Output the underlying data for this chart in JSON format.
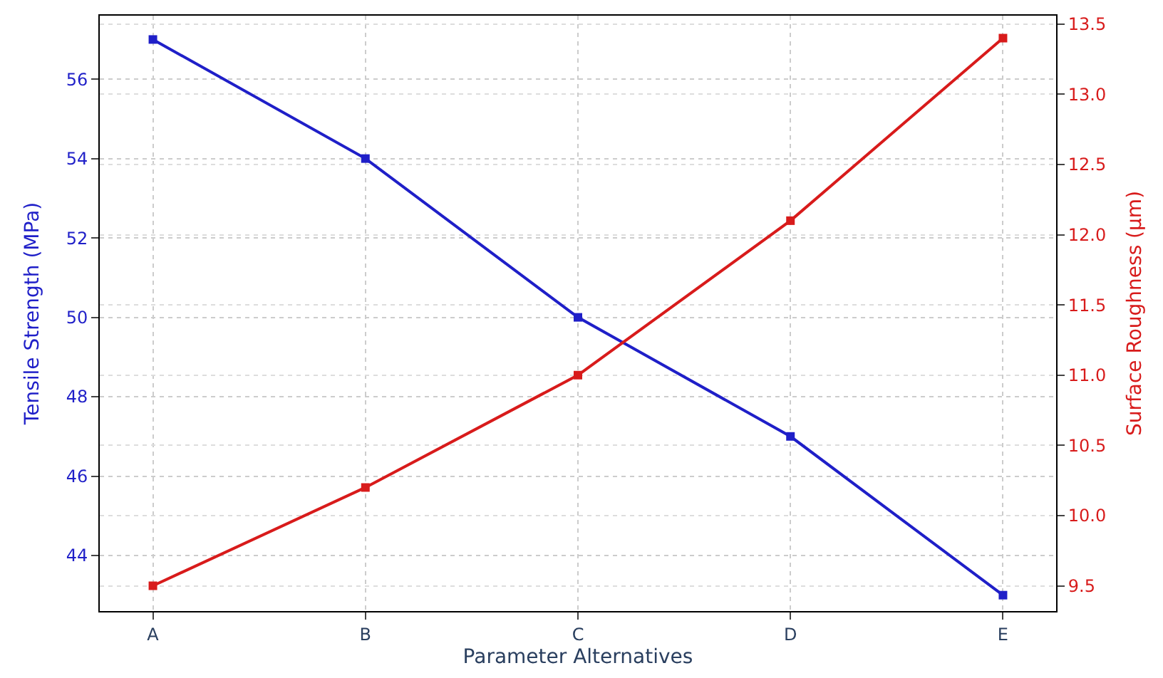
{
  "chart_data": {
    "type": "line",
    "xlabel": "Parameter Alternatives",
    "ylabel": "Tensile Strength (MPa)",
    "y2label": "Surface Roughness (µm)",
    "categories": [
      "A",
      "B",
      "C",
      "D",
      "E"
    ],
    "series": [
      {
        "color": "#1f1fc8",
        "values": [
          57,
          54,
          50,
          47,
          43
        ]
      },
      {
        "color": "#d81b1b",
        "values": [
          9.5,
          10.2,
          11.0,
          12.1,
          13.4
        ],
        "axis": "y2"
      }
    ],
    "ylim": [
      42.6,
      57.6
    ],
    "yticks": [
      44,
      46,
      48,
      50,
      52,
      54,
      56
    ],
    "y2lim": [
      9.32,
      13.56
    ],
    "y2ticks": [
      {
        "value": 9.5,
        "label": "9.5"
      },
      {
        "value": 10,
        "label": "10.0"
      },
      {
        "value": 10.5,
        "label": "10.5"
      },
      {
        "value": 11,
        "label": "11.0"
      },
      {
        "value": 11.5,
        "label": "11.5"
      },
      {
        "value": 12,
        "label": "12.0"
      },
      {
        "value": 12.5,
        "label": "12.5"
      },
      {
        "value": 13,
        "label": "13.0"
      },
      {
        "value": 13.5,
        "label": "13.5"
      }
    ],
    "grid": true,
    "marker": "square",
    "line_style": "solid",
    "legend": false
  }
}
